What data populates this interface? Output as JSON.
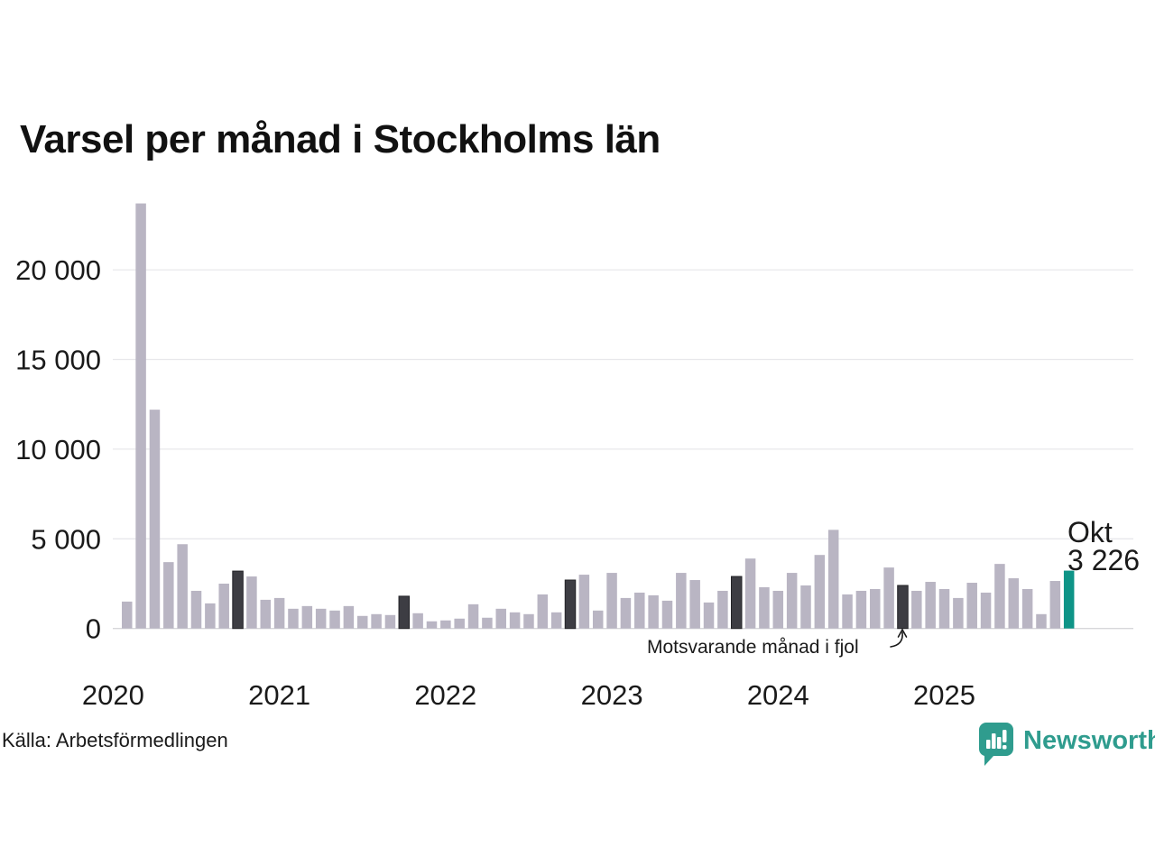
{
  "title": "Varsel per månad i Stockholms län",
  "source": "Källa: Arbetsförmedlingen",
  "brand": {
    "name": "Newsworthy",
    "color": "#2f9c8e"
  },
  "annotation": {
    "text": "Motsvarande månad i fjol"
  },
  "highlight_label": {
    "month": "Okt",
    "value": "3 226"
  },
  "colors": {
    "bar": "#b9b5c3",
    "bar_last_year": "#3d3d43",
    "bar_last_year_border": "#232327",
    "bar_current": "#0e9487",
    "gridline": "#e8e8eb",
    "baseline": "#d7d7da",
    "text": "#1a1a1a"
  },
  "chart_data": {
    "type": "bar",
    "title": "Varsel per månad i Stockholms län",
    "xlabel": "",
    "ylabel": "",
    "ylim": [
      0,
      24000
    ],
    "grid": "horizontal",
    "yticks": [
      0,
      5000,
      10000,
      15000,
      20000
    ],
    "ytick_labels": [
      "0",
      "5 000",
      "10 000",
      "15 000",
      "20 000"
    ],
    "year_labels": [
      "2020",
      "2021",
      "2022",
      "2023",
      "2024",
      "2025"
    ],
    "legend": "none",
    "note": "highlight types: normal = gray bar, lastyear = dark bar (Motsvarande månad i fjol), current = teal bar (Okt 2025, labeled 3 226)",
    "series": [
      {
        "month": "feb 2020",
        "value": 1500,
        "type": "normal"
      },
      {
        "month": "mar 2020",
        "value": 23700,
        "type": "normal"
      },
      {
        "month": "apr 2020",
        "value": 12200,
        "type": "normal"
      },
      {
        "month": "maj 2020",
        "value": 3700,
        "type": "normal"
      },
      {
        "month": "jun 2020",
        "value": 4700,
        "type": "normal"
      },
      {
        "month": "jul 2020",
        "value": 2100,
        "type": "normal"
      },
      {
        "month": "aug 2020",
        "value": 1400,
        "type": "normal"
      },
      {
        "month": "sep 2020",
        "value": 2500,
        "type": "normal"
      },
      {
        "month": "okt 2020",
        "value": 3200,
        "type": "lastyear"
      },
      {
        "month": "nov 2020",
        "value": 2900,
        "type": "normal"
      },
      {
        "month": "dec 2020",
        "value": 1600,
        "type": "normal"
      },
      {
        "month": "jan 2021",
        "value": 1700,
        "type": "normal"
      },
      {
        "month": "feb 2021",
        "value": 1100,
        "type": "normal"
      },
      {
        "month": "mar 2021",
        "value": 1250,
        "type": "normal"
      },
      {
        "month": "apr 2021",
        "value": 1100,
        "type": "normal"
      },
      {
        "month": "maj 2021",
        "value": 1000,
        "type": "normal"
      },
      {
        "month": "jun 2021",
        "value": 1250,
        "type": "normal"
      },
      {
        "month": "jul 2021",
        "value": 700,
        "type": "normal"
      },
      {
        "month": "aug 2021",
        "value": 800,
        "type": "normal"
      },
      {
        "month": "sep 2021",
        "value": 750,
        "type": "normal"
      },
      {
        "month": "okt 2021",
        "value": 1800,
        "type": "lastyear"
      },
      {
        "month": "nov 2021",
        "value": 850,
        "type": "normal"
      },
      {
        "month": "dec 2021",
        "value": 400,
        "type": "normal"
      },
      {
        "month": "jan 2022",
        "value": 450,
        "type": "normal"
      },
      {
        "month": "feb 2022",
        "value": 550,
        "type": "normal"
      },
      {
        "month": "mar 2022",
        "value": 1350,
        "type": "normal"
      },
      {
        "month": "apr 2022",
        "value": 600,
        "type": "normal"
      },
      {
        "month": "maj 2022",
        "value": 1100,
        "type": "normal"
      },
      {
        "month": "jun 2022",
        "value": 900,
        "type": "normal"
      },
      {
        "month": "jul 2022",
        "value": 800,
        "type": "normal"
      },
      {
        "month": "aug 2022",
        "value": 1900,
        "type": "normal"
      },
      {
        "month": "sep 2022",
        "value": 900,
        "type": "normal"
      },
      {
        "month": "okt 2022",
        "value": 2700,
        "type": "lastyear"
      },
      {
        "month": "nov 2022",
        "value": 3000,
        "type": "normal"
      },
      {
        "month": "dec 2022",
        "value": 1000,
        "type": "normal"
      },
      {
        "month": "jan 2023",
        "value": 3100,
        "type": "normal"
      },
      {
        "month": "feb 2023",
        "value": 1700,
        "type": "normal"
      },
      {
        "month": "mar 2023",
        "value": 2000,
        "type": "normal"
      },
      {
        "month": "apr 2023",
        "value": 1850,
        "type": "normal"
      },
      {
        "month": "maj 2023",
        "value": 1550,
        "type": "normal"
      },
      {
        "month": "jun 2023",
        "value": 3100,
        "type": "normal"
      },
      {
        "month": "jul 2023",
        "value": 2700,
        "type": "normal"
      },
      {
        "month": "aug 2023",
        "value": 1450,
        "type": "normal"
      },
      {
        "month": "sep 2023",
        "value": 2100,
        "type": "normal"
      },
      {
        "month": "okt 2023",
        "value": 2900,
        "type": "lastyear"
      },
      {
        "month": "nov 2023",
        "value": 3900,
        "type": "normal"
      },
      {
        "month": "dec 2023",
        "value": 2300,
        "type": "normal"
      },
      {
        "month": "jan 2024",
        "value": 2100,
        "type": "normal"
      },
      {
        "month": "feb 2024",
        "value": 3100,
        "type": "normal"
      },
      {
        "month": "mar 2024",
        "value": 2400,
        "type": "normal"
      },
      {
        "month": "apr 2024",
        "value": 4100,
        "type": "normal"
      },
      {
        "month": "maj 2024",
        "value": 5500,
        "type": "normal"
      },
      {
        "month": "jun 2024",
        "value": 1900,
        "type": "normal"
      },
      {
        "month": "jul 2024",
        "value": 2100,
        "type": "normal"
      },
      {
        "month": "aug 2024",
        "value": 2200,
        "type": "normal"
      },
      {
        "month": "sep 2024",
        "value": 3400,
        "type": "normal"
      },
      {
        "month": "okt 2024",
        "value": 2400,
        "type": "lastyear"
      },
      {
        "month": "nov 2024",
        "value": 2100,
        "type": "normal"
      },
      {
        "month": "dec 2024",
        "value": 2600,
        "type": "normal"
      },
      {
        "month": "jan 2025",
        "value": 2200,
        "type": "normal"
      },
      {
        "month": "feb 2025",
        "value": 1700,
        "type": "normal"
      },
      {
        "month": "mar 2025",
        "value": 2550,
        "type": "normal"
      },
      {
        "month": "apr 2025",
        "value": 2000,
        "type": "normal"
      },
      {
        "month": "maj 2025",
        "value": 3600,
        "type": "normal"
      },
      {
        "month": "jun 2025",
        "value": 2800,
        "type": "normal"
      },
      {
        "month": "jul 2025",
        "value": 2200,
        "type": "normal"
      },
      {
        "month": "aug 2025",
        "value": 800,
        "type": "normal"
      },
      {
        "month": "sep 2025",
        "value": 2650,
        "type": "normal"
      },
      {
        "month": "okt 2025",
        "value": 3226,
        "type": "current"
      }
    ]
  }
}
